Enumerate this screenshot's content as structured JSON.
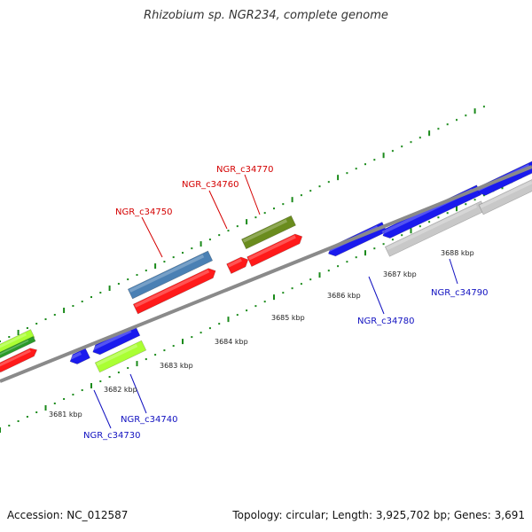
{
  "title": "Rhizobium sp. NGR234, complete genome",
  "footer": {
    "accession": "Accession: NC_012587",
    "summary": "Topology: circular; Length: 3,925,702 bp; Genes: 3,691"
  },
  "colors": {
    "backbone": "#8a8a8a",
    "tick_dots": "#1a8a1a",
    "label_upper": "#d40000",
    "label_lower": "#1010c0",
    "gene_red": "#ff1a1a",
    "gene_blue": "#1a1aee",
    "gene_steelblue": "#4a80b4",
    "gene_olive": "#6a8c1e",
    "gene_lime": "#aaff33",
    "gene_green": "#2a9a2a",
    "gene_gray": "#c8c8c8"
  },
  "scale_labels": [
    "3681 kbp",
    "3682 kbp",
    "3683 kbp",
    "3684 kbp",
    "3685 kbp",
    "3686 kbp",
    "3687 kbp",
    "3688 kbp"
  ],
  "gene_labels_upper": [
    "NGR_c34750",
    "NGR_c34760",
    "NGR_c34770"
  ],
  "gene_labels_lower": [
    "NGR_c34730",
    "NGR_c34740",
    "NGR_c34780",
    "NGR_c34790"
  ]
}
